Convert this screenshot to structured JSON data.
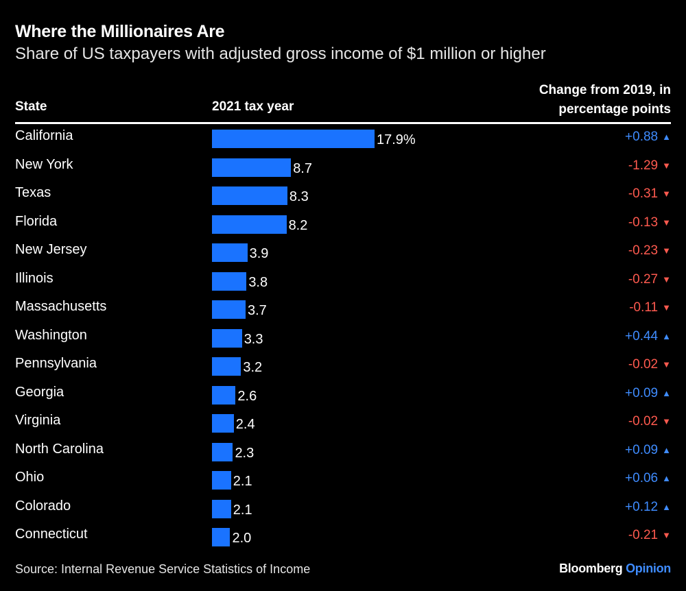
{
  "title": "Where the Millionaires Are",
  "subtitle": "Share of US taxpayers with adjusted gross income of $1 million or higher",
  "headers": {
    "state": "State",
    "year": "2021 tax year",
    "change_line1": "Change from 2019, in",
    "change_line2": "percentage points"
  },
  "source": "Source: Internal Revenue Service Statistics of Income",
  "brand": {
    "name": "Bloomberg",
    "suffix": "Opinion"
  },
  "colors": {
    "bar": "#1a73ff",
    "up": "#3f8cff",
    "down": "#ff5a4f",
    "background": "#000000"
  },
  "chart_data": {
    "type": "bar",
    "orientation": "horizontal",
    "title": "Where the Millionaires Are",
    "subtitle": "Share of US taxpayers with adjusted gross income of $1 million or higher",
    "xlabel": "2021 tax year",
    "ylabel": "State",
    "xlim": [
      0,
      17.9
    ],
    "categories": [
      "California",
      "New York",
      "Texas",
      "Florida",
      "New Jersey",
      "Illinois",
      "Massachusetts",
      "Washington",
      "Pennsylvania",
      "Georgia",
      "Virginia",
      "North Carolina",
      "Ohio",
      "Colorado",
      "Connecticut"
    ],
    "values": [
      17.9,
      8.7,
      8.3,
      8.2,
      3.9,
      3.8,
      3.7,
      3.3,
      3.2,
      2.6,
      2.4,
      2.3,
      2.1,
      2.1,
      2.0
    ],
    "value_labels": [
      "17.9%",
      "8.7",
      "8.3",
      "8.2",
      "3.9",
      "3.8",
      "3.7",
      "3.3",
      "3.2",
      "2.6",
      "2.4",
      "2.3",
      "2.1",
      "2.1",
      "2.0"
    ],
    "change_from_2019": [
      0.88,
      -1.29,
      -0.31,
      -0.13,
      -0.23,
      -0.27,
      -0.11,
      0.44,
      -0.02,
      0.09,
      -0.02,
      0.09,
      0.06,
      0.12,
      -0.21
    ],
    "change_labels": [
      "+0.88",
      "-1.29",
      "-0.31",
      "-0.13",
      "-0.23",
      "-0.27",
      "-0.11",
      "+0.44",
      "-0.02",
      "+0.09",
      "-0.02",
      "+0.09",
      "+0.06",
      "+0.12",
      "-0.21"
    ]
  }
}
